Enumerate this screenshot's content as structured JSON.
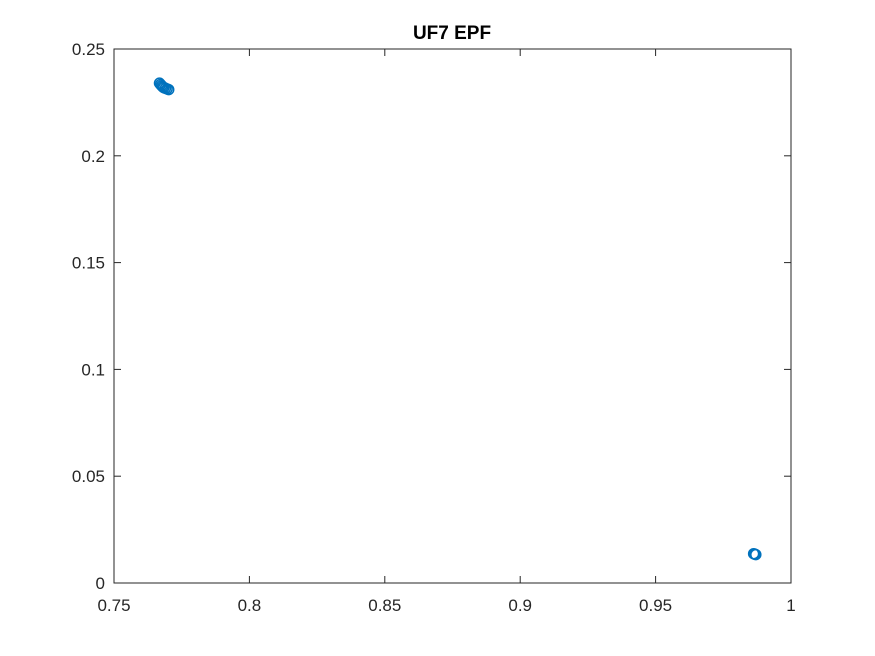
{
  "chart_data": {
    "type": "scatter",
    "title": "UF7 EPF",
    "xlabel": "",
    "ylabel": "",
    "xlim": [
      0.75,
      1
    ],
    "ylim": [
      0,
      0.25
    ],
    "x_ticks": [
      "0.75",
      "0.8",
      "0.85",
      "0.9",
      "0.95",
      "1"
    ],
    "y_ticks": [
      "0",
      "0.05",
      "0.1",
      "0.15",
      "0.2",
      "0.25"
    ],
    "grid": false,
    "marker_color": "#0072BD",
    "series": [
      {
        "points": [
          [
            0.7668,
            0.234
          ],
          [
            0.7672,
            0.2334
          ],
          [
            0.7676,
            0.2328
          ],
          [
            0.768,
            0.2323
          ],
          [
            0.7684,
            0.2319
          ],
          [
            0.769,
            0.2316
          ],
          [
            0.7696,
            0.2313
          ],
          [
            0.7702,
            0.231
          ],
          [
            0.9862,
            0.0137
          ],
          [
            0.9866,
            0.0135
          ],
          [
            0.987,
            0.0133
          ]
        ]
      }
    ]
  }
}
